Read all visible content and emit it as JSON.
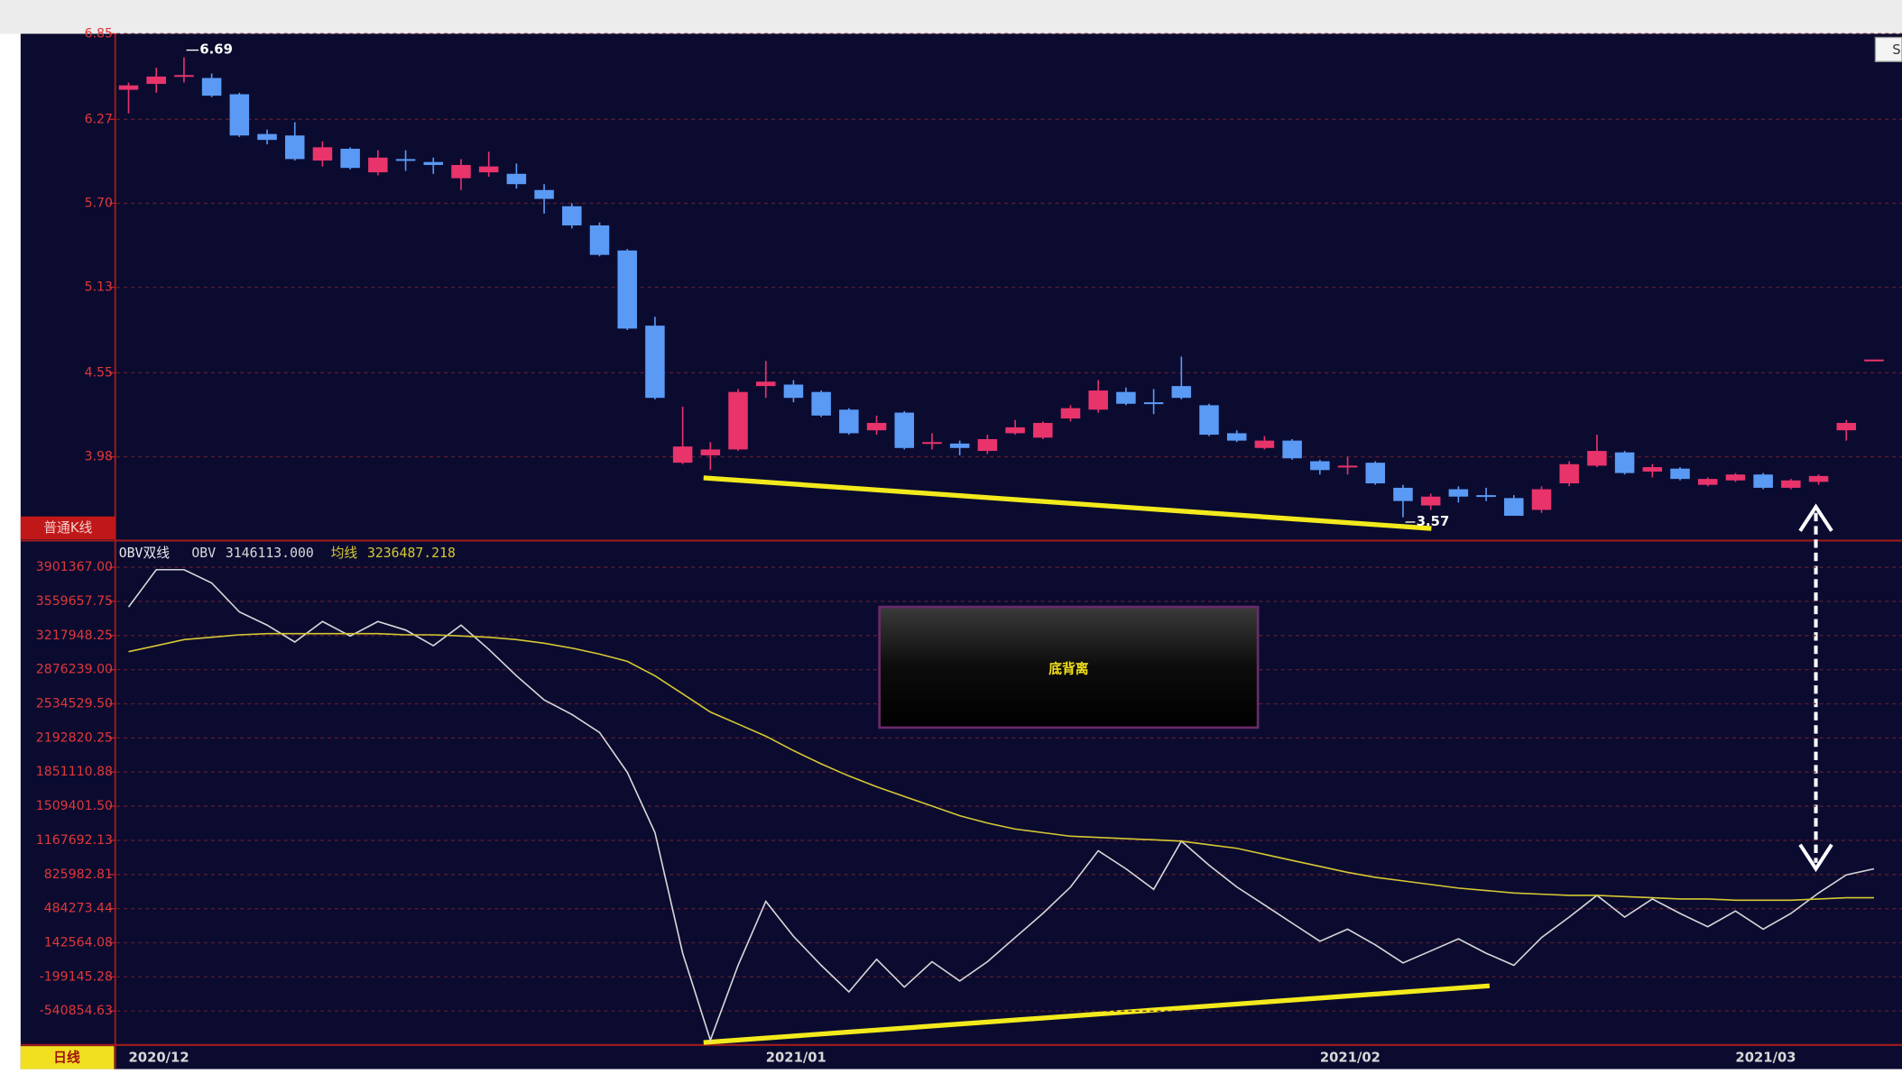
{
  "toolbar": {
    "button": "S"
  },
  "chart_data": [
    {
      "type": "candlestick",
      "label": "普通K线",
      "up_color": "#e8336b",
      "down_color": "#5a9af5",
      "open": [
        6.47,
        6.51,
        6.56,
        6.55,
        6.44,
        6.17,
        6.16,
        5.99,
        6.07,
        5.91,
        6.0,
        5.98,
        5.87,
        5.91,
        5.9,
        5.79,
        5.68,
        5.55,
        5.38,
        4.87,
        3.94,
        3.99,
        4.03,
        4.46,
        4.47,
        4.42,
        4.3,
        4.16,
        4.28,
        4.07,
        4.07,
        4.02,
        4.14,
        4.11,
        4.24,
        4.3,
        4.42,
        4.35,
        4.46,
        4.33,
        4.14,
        4.04,
        4.09,
        3.95,
        3.91,
        3.94,
        3.77,
        3.65,
        3.76,
        3.72,
        3.7,
        3.62,
        3.8,
        3.92,
        4.01,
        3.88,
        3.9,
        3.79,
        3.82,
        3.86,
        3.77,
        3.81,
        4.16,
        4.63
      ],
      "high": [
        6.52,
        6.62,
        6.69,
        6.58,
        6.45,
        6.2,
        6.25,
        6.12,
        6.08,
        6.06,
        6.06,
        6.01,
        6.0,
        6.05,
        5.97,
        5.83,
        5.7,
        5.57,
        5.39,
        4.93,
        4.32,
        4.08,
        4.44,
        4.63,
        4.5,
        4.43,
        4.31,
        4.26,
        4.29,
        4.14,
        4.09,
        4.13,
        4.23,
        4.22,
        4.33,
        4.5,
        4.45,
        4.44,
        4.66,
        4.34,
        4.16,
        4.12,
        4.1,
        3.96,
        3.98,
        3.95,
        3.79,
        3.73,
        3.78,
        3.77,
        3.72,
        3.78,
        3.95,
        4.13,
        4.02,
        3.93,
        3.91,
        3.84,
        3.87,
        3.87,
        3.83,
        3.86,
        4.23,
        4.64
      ],
      "low": [
        6.31,
        6.45,
        6.52,
        6.42,
        6.15,
        6.1,
        5.99,
        5.95,
        5.93,
        5.89,
        5.92,
        5.9,
        5.79,
        5.88,
        5.8,
        5.63,
        5.53,
        5.34,
        4.84,
        4.37,
        3.93,
        3.89,
        4.02,
        4.38,
        4.35,
        4.25,
        4.13,
        4.13,
        4.03,
        4.03,
        3.99,
        4.0,
        4.13,
        4.1,
        4.22,
        4.28,
        4.33,
        4.27,
        4.37,
        4.12,
        4.08,
        4.03,
        3.96,
        3.86,
        3.86,
        3.79,
        3.57,
        3.62,
        3.67,
        3.68,
        3.58,
        3.6,
        3.78,
        3.91,
        3.86,
        3.84,
        3.82,
        3.78,
        3.81,
        3.76,
        3.76,
        3.79,
        4.09,
        4.63
      ],
      "close": [
        6.5,
        6.56,
        6.57,
        6.43,
        6.16,
        6.13,
        6.0,
        6.08,
        5.94,
        6.01,
        5.99,
        5.96,
        5.96,
        5.95,
        5.83,
        5.73,
        5.55,
        5.35,
        4.85,
        4.38,
        4.05,
        4.03,
        4.42,
        4.49,
        4.38,
        4.26,
        4.14,
        4.21,
        4.04,
        4.08,
        4.04,
        4.1,
        4.18,
        4.21,
        4.31,
        4.43,
        4.34,
        4.34,
        4.38,
        4.13,
        4.09,
        4.09,
        3.97,
        3.89,
        3.92,
        3.8,
        3.68,
        3.71,
        3.71,
        3.71,
        3.58,
        3.76,
        3.93,
        4.02,
        3.87,
        3.91,
        3.83,
        3.83,
        3.86,
        3.77,
        3.82,
        3.85,
        4.21,
        4.64
      ],
      "high_label": 6.69,
      "low_label": 3.57,
      "ylim": [
        3.42,
        6.85
      ],
      "yticks": [
        6.85,
        6.27,
        {
          "value": 5.7,
          "label": "5.70"
        },
        5.13,
        4.55,
        3.98
      ],
      "grid": true
    },
    {
      "type": "line",
      "title": "OBV双线",
      "annotation": "底背离",
      "period": "日线",
      "categories": [
        "2020/12",
        null,
        null,
        null,
        null,
        null,
        null,
        null,
        null,
        null,
        null,
        null,
        null,
        null,
        null,
        null,
        null,
        null,
        null,
        null,
        null,
        null,
        null,
        "2021/01",
        null,
        null,
        null,
        null,
        null,
        null,
        null,
        null,
        null,
        null,
        null,
        null,
        null,
        null,
        null,
        null,
        null,
        null,
        null,
        "2021/02",
        null,
        null,
        null,
        null,
        null,
        null,
        null,
        null,
        null,
        null,
        null,
        null,
        null,
        null,
        "2021/03",
        null,
        null,
        null,
        null,
        null
      ],
      "series": [
        {
          "name": "OBV",
          "color": "#d8d8d8",
          "readout": {
            "value": 3146113,
            "label": "3146113.000"
          },
          "values": [
            3503000,
            3877000,
            3877000,
            3744000,
            3454000,
            3322000,
            3153000,
            3358000,
            3213000,
            3358000,
            3273000,
            3116000,
            3322000,
            3080000,
            2815000,
            2573000,
            2428000,
            2247000,
            1849000,
            1245000,
            38000,
            -832000,
            -83000,
            557000,
            207000,
            -83000,
            -349000,
            -23000,
            -301000,
            -47000,
            -240000,
            -47000,
            195000,
            436000,
            701000,
            1064000,
            883000,
            677000,
            1160000,
            919000,
            701000,
            521000,
            339000,
            158000,
            279000,
            122000,
            -59000,
            61000,
            182000,
            38000,
            -83000,
            195000,
            400000,
            617000,
            400000,
            581000,
            436000,
            303000,
            460000,
            279000,
            436000,
            641000,
            822000,
            883000
          ]
        },
        {
          "name": "均线",
          "color": "#d6c832",
          "readout": {
            "value": 3236487.218,
            "label": "3236487.218"
          },
          "values": [
            3056000,
            3116000,
            3177000,
            3201000,
            3225000,
            3237000,
            3237000,
            3237000,
            3237000,
            3237000,
            3225000,
            3225000,
            3213000,
            3201000,
            3177000,
            3141000,
            3092000,
            3032000,
            2960000,
            2815000,
            2634000,
            2452000,
            2332000,
            2211000,
            2066000,
            1933000,
            1812000,
            1704000,
            1607000,
            1511000,
            1414000,
            1341000,
            1281000,
            1245000,
            1209000,
            1197000,
            1185000,
            1173000,
            1160000,
            1124000,
            1088000,
            1028000,
            967000,
            907000,
            847000,
            798000,
            762000,
            726000,
            690000,
            666000,
            641000,
            629000,
            617000,
            617000,
            605000,
            593000,
            581000,
            581000,
            569000,
            569000,
            569000,
            581000,
            593000,
            593000
          ]
        }
      ],
      "ylim": [
        -880000,
        4120000
      ],
      "yticks": [
        {
          "value": 3901367,
          "label": "3901367.00"
        },
        3559657.75,
        3217948.25,
        {
          "value": 2876239,
          "label": "2876239.00"
        },
        {
          "value": 2534529.5,
          "label": "2534529.50"
        },
        2192820.25,
        1851110.88,
        {
          "value": 1509401.5,
          "label": "1509401.50"
        },
        1167692.13,
        825982.81,
        484273.44,
        142564.08,
        -199145.28,
        -540854.63
      ],
      "grid": true
    }
  ]
}
